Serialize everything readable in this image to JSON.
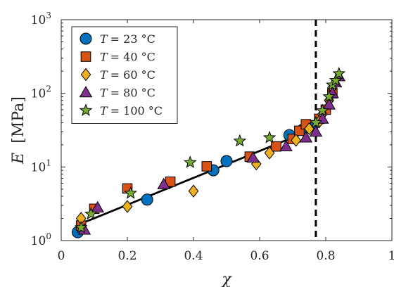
{
  "chart_data": {
    "type": "scatter",
    "xlabel": "χ",
    "ylabel": "E [MPa]",
    "ylabel_symbol": "E",
    "ylabel_unit": "[MPa]",
    "xlim": [
      0,
      1
    ],
    "ylim": [
      1,
      1000
    ],
    "yscale": "log",
    "grid": true,
    "legend_position": "top-left",
    "x_ticks": [
      {
        "value": 0,
        "label": "0"
      },
      {
        "value": 0.2,
        "label": "0.2"
      },
      {
        "value": 0.4,
        "label": "0.4"
      },
      {
        "value": 0.6,
        "label": "0.6"
      },
      {
        "value": 0.8,
        "label": "0.8"
      },
      {
        "value": 1,
        "label": "1"
      }
    ],
    "y_ticks": [
      {
        "value": 1,
        "label_base": "10",
        "label_exp": "0"
      },
      {
        "value": 10,
        "label_base": "10",
        "label_exp": "1"
      },
      {
        "value": 100,
        "label_base": "10",
        "label_exp": "2"
      },
      {
        "value": 1000,
        "label_base": "10",
        "label_exp": "3"
      }
    ],
    "vertical_line": {
      "x": 0.77,
      "style": "dashed",
      "color": "#000000"
    },
    "fit_line": {
      "color": "#000000",
      "points": [
        [
          0.06,
          1.7
        ],
        [
          0.765,
          33
        ],
        [
          0.8,
          68
        ],
        [
          0.84,
          180
        ]
      ]
    },
    "series": [
      {
        "name_symbol": "T",
        "name_value": "= 23 °C",
        "marker": "circle",
        "color": "#0072BD",
        "points": [
          [
            0.05,
            1.3
          ],
          [
            0.26,
            3.6
          ],
          [
            0.46,
            9.0
          ],
          [
            0.5,
            12.0
          ],
          [
            0.69,
            27.0
          ],
          [
            0.73,
            32.0
          ],
          [
            0.76,
            36.0
          ]
        ]
      },
      {
        "name_symbol": "T",
        "name_value": "= 40 °C",
        "marker": "square",
        "color": "#D95319",
        "points": [
          [
            0.06,
            1.6
          ],
          [
            0.1,
            2.7
          ],
          [
            0.2,
            5.1
          ],
          [
            0.33,
            6.3
          ],
          [
            0.44,
            10.2
          ],
          [
            0.57,
            13.8
          ],
          [
            0.65,
            19.0
          ],
          [
            0.7,
            24.0
          ],
          [
            0.72,
            31.0
          ],
          [
            0.74,
            38.0
          ],
          [
            0.78,
            45.0
          ],
          [
            0.8,
            60.0
          ],
          [
            0.82,
            100.0
          ]
        ]
      },
      {
        "name_symbol": "T",
        "name_value": "= 60 °C",
        "marker": "diamond",
        "color": "#EDB120",
        "points": [
          [
            0.06,
            2.0
          ],
          [
            0.2,
            2.9
          ],
          [
            0.4,
            4.7
          ],
          [
            0.59,
            11.0
          ],
          [
            0.63,
            15.5
          ],
          [
            0.71,
            23.0
          ],
          [
            0.75,
            33.0
          ],
          [
            0.78,
            41.0
          ],
          [
            0.79,
            52.0
          ],
          [
            0.81,
            80.0
          ],
          [
            0.82,
            120.0
          ]
        ]
      },
      {
        "name_symbol": "T",
        "name_value": "= 80 °C",
        "marker": "triangle",
        "color": "#7E2F8E",
        "points": [
          [
            0.07,
            1.4
          ],
          [
            0.11,
            2.8
          ],
          [
            0.31,
            5.8
          ],
          [
            0.58,
            13.3
          ],
          [
            0.68,
            19.0
          ],
          [
            0.74,
            25.0
          ],
          [
            0.77,
            30.0
          ],
          [
            0.79,
            45.0
          ],
          [
            0.81,
            70.0
          ],
          [
            0.82,
            100.0
          ],
          [
            0.83,
            140.0
          ],
          [
            0.84,
            170.0
          ]
        ]
      },
      {
        "name_symbol": "T",
        "name_value": "= 100 °C",
        "marker": "star",
        "color": "#77AC30",
        "points": [
          [
            0.06,
            1.5
          ],
          [
            0.09,
            2.3
          ],
          [
            0.21,
            4.4
          ],
          [
            0.39,
            11.5
          ],
          [
            0.54,
            22.5
          ],
          [
            0.63,
            25.0
          ],
          [
            0.77,
            40.0
          ],
          [
            0.79,
            58.0
          ],
          [
            0.81,
            90.0
          ],
          [
            0.82,
            130.0
          ],
          [
            0.83,
            150.0
          ],
          [
            0.84,
            185.0
          ]
        ]
      }
    ]
  }
}
